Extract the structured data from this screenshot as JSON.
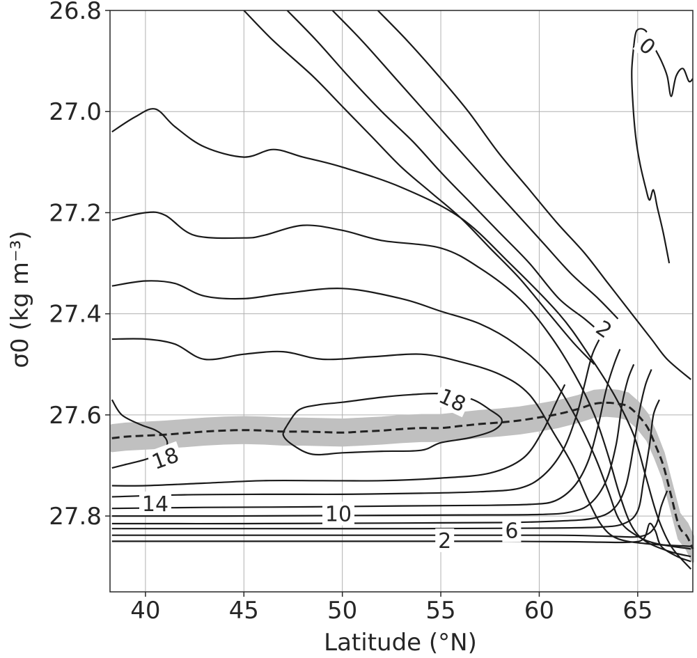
{
  "chart_data": {
    "type": "contour",
    "xlabel": "Latitude (°N)",
    "ylabel": "σ0 (kg m⁻³)",
    "xlim": [
      38.2,
      67.8
    ],
    "ylim": [
      26.8,
      27.95
    ],
    "y_inverted": true,
    "grid": true,
    "xticks": [
      40,
      45,
      50,
      55,
      60,
      65
    ],
    "xtick_labels": [
      "40",
      "45",
      "50",
      "55",
      "60",
      "65"
    ],
    "yticks": [
      26.8,
      27.0,
      27.2,
      27.4,
      27.6,
      27.8
    ],
    "ytick_labels": [
      "26.8",
      "27.0",
      "27.2",
      "27.4",
      "27.6",
      "27.8"
    ],
    "contour_labels": [
      {
        "text": "0",
        "lat": 65.5,
        "sigma": 26.87,
        "angle": 40
      },
      {
        "text": "2",
        "lat": 63.3,
        "sigma": 27.43,
        "angle": 35
      },
      {
        "text": "18",
        "lat": 55.6,
        "sigma": 27.57,
        "angle": 25
      },
      {
        "text": "18",
        "lat": 41.0,
        "sigma": 27.685,
        "angle": -20
      },
      {
        "text": "14",
        "lat": 40.5,
        "sigma": 27.775,
        "angle": 0
      },
      {
        "text": "10",
        "lat": 49.8,
        "sigma": 27.795,
        "angle": 0
      },
      {
        "text": "6",
        "lat": 58.6,
        "sigma": 27.828,
        "angle": 0
      },
      {
        "text": "2",
        "lat": 55.2,
        "sigma": 27.848,
        "angle": 0
      }
    ],
    "contours": [
      [
        [
          38.3,
          27.04
        ],
        [
          39.5,
          27.01
        ],
        [
          40.5,
          26.995
        ],
        [
          41.5,
          27.03
        ],
        [
          43,
          27.07
        ],
        [
          45,
          27.09
        ],
        [
          46.5,
          27.075
        ],
        [
          48,
          27.09
        ],
        [
          50,
          27.11
        ],
        [
          53,
          27.15
        ],
        [
          56,
          27.21
        ],
        [
          58.5,
          27.3
        ],
        [
          61,
          27.4
        ],
        [
          62.5,
          27.48
        ],
        [
          63.8,
          27.56
        ],
        [
          64.8,
          27.64
        ],
        [
          65.4,
          27.72
        ],
        [
          66,
          27.8
        ],
        [
          66.7,
          27.86
        ],
        [
          67.7,
          27.905
        ]
      ],
      [
        [
          38.3,
          27.215
        ],
        [
          40,
          27.2
        ],
        [
          41,
          27.205
        ],
        [
          42.5,
          27.245
        ],
        [
          45,
          27.25
        ],
        [
          46,
          27.245
        ],
        [
          48,
          27.225
        ],
        [
          50,
          27.235
        ],
        [
          52,
          27.255
        ],
        [
          55,
          27.27
        ],
        [
          57,
          27.31
        ],
        [
          59,
          27.37
        ],
        [
          60.5,
          27.44
        ],
        [
          61.8,
          27.52
        ],
        [
          62.8,
          27.6
        ],
        [
          63.5,
          27.68
        ],
        [
          64.1,
          27.76
        ],
        [
          64.7,
          27.82
        ],
        [
          65.4,
          27.85
        ],
        [
          66.6,
          27.87
        ],
        [
          67.7,
          27.88
        ]
      ],
      [
        [
          38.3,
          27.345
        ],
        [
          40,
          27.335
        ],
        [
          41.5,
          27.34
        ],
        [
          43,
          27.365
        ],
        [
          45,
          27.37
        ],
        [
          47,
          27.36
        ],
        [
          50,
          27.35
        ],
        [
          53,
          27.37
        ],
        [
          55,
          27.395
        ],
        [
          57,
          27.42
        ],
        [
          58.8,
          27.46
        ],
        [
          60.5,
          27.52
        ],
        [
          61.8,
          27.6
        ],
        [
          62.8,
          27.68
        ],
        [
          63.5,
          27.75
        ],
        [
          64.1,
          27.81
        ],
        [
          65,
          27.84
        ],
        [
          66,
          27.855
        ],
        [
          67.7,
          27.865
        ]
      ],
      [
        [
          38.3,
          27.45
        ],
        [
          40,
          27.45
        ],
        [
          41.5,
          27.46
        ],
        [
          43,
          27.49
        ],
        [
          45,
          27.48
        ],
        [
          47,
          27.475
        ],
        [
          49,
          27.49
        ],
        [
          51.5,
          27.485
        ],
        [
          54,
          27.48
        ],
        [
          56,
          27.495
        ],
        [
          58,
          27.52
        ],
        [
          59.5,
          27.56
        ],
        [
          60.8,
          27.64
        ],
        [
          61.7,
          27.7
        ],
        [
          62.5,
          27.77
        ],
        [
          63.2,
          27.82
        ],
        [
          64,
          27.845
        ],
        [
          65.5,
          27.855
        ],
        [
          67.7,
          27.86
        ]
      ],
      [
        [
          38.3,
          27.74
        ],
        [
          40,
          27.74
        ],
        [
          43,
          27.735
        ],
        [
          46,
          27.73
        ],
        [
          49,
          27.73
        ],
        [
          52,
          27.73
        ],
        [
          55,
          27.725
        ],
        [
          57.5,
          27.715
        ],
        [
          59.2,
          27.685
        ],
        [
          60.2,
          27.63
        ],
        [
          60.8,
          27.58
        ],
        [
          61.3,
          27.54
        ]
      ],
      [
        [
          38.3,
          27.762
        ],
        [
          42,
          27.758
        ],
        [
          46,
          27.757
        ],
        [
          50,
          27.757
        ],
        [
          54,
          27.755
        ],
        [
          57,
          27.752
        ],
        [
          59,
          27.745
        ],
        [
          60.2,
          27.72
        ],
        [
          61.2,
          27.67
        ],
        [
          61.9,
          27.6
        ],
        [
          62.3,
          27.54
        ],
        [
          62.7,
          27.48
        ],
        [
          63.2,
          27.44
        ]
      ],
      [
        [
          38.3,
          27.785
        ],
        [
          43,
          27.783
        ],
        [
          48,
          27.782
        ],
        [
          53,
          27.78
        ],
        [
          57,
          27.779
        ],
        [
          59.5,
          27.777
        ],
        [
          60.8,
          27.77
        ],
        [
          61.8,
          27.74
        ],
        [
          62.5,
          27.69
        ],
        [
          63,
          27.62
        ],
        [
          63.4,
          27.55
        ],
        [
          63.8,
          27.5
        ],
        [
          64.1,
          27.47
        ]
      ],
      [
        [
          38.3,
          27.8
        ],
        [
          44,
          27.8
        ],
        [
          50,
          27.799
        ],
        [
          56,
          27.798
        ],
        [
          60,
          27.797
        ],
        [
          61.6,
          27.792
        ],
        [
          62.6,
          27.775
        ],
        [
          63.4,
          27.73
        ],
        [
          63.9,
          27.66
        ],
        [
          64.2,
          27.58
        ],
        [
          64.5,
          27.53
        ],
        [
          64.8,
          27.5
        ]
      ],
      [
        [
          38.3,
          27.815
        ],
        [
          45,
          27.815
        ],
        [
          52,
          27.814
        ],
        [
          58,
          27.813
        ],
        [
          61,
          27.81
        ],
        [
          62.8,
          27.804
        ],
        [
          63.8,
          27.785
        ],
        [
          64.4,
          27.74
        ],
        [
          64.8,
          27.66
        ],
        [
          65.1,
          27.59
        ],
        [
          65.4,
          27.54
        ],
        [
          65.7,
          27.51
        ]
      ],
      [
        [
          38.3,
          27.825
        ],
        [
          46,
          27.825
        ],
        [
          54,
          27.825
        ],
        [
          60,
          27.824
        ],
        [
          63,
          27.822
        ],
        [
          64.3,
          27.815
        ],
        [
          65,
          27.79
        ],
        [
          65.3,
          27.73
        ],
        [
          65.6,
          27.66
        ],
        [
          65.8,
          27.6
        ],
        [
          66.1,
          27.57
        ]
      ],
      [
        [
          38.3,
          27.838
        ],
        [
          47,
          27.838
        ],
        [
          56,
          27.838
        ],
        [
          61,
          27.838
        ],
        [
          63.5,
          27.84
        ],
        [
          65.2,
          27.84
        ],
        [
          65.9,
          27.82
        ],
        [
          66.2,
          27.78
        ],
        [
          66.5,
          27.75
        ]
      ],
      [
        [
          38.3,
          27.85
        ],
        [
          50,
          27.85
        ],
        [
          58,
          27.85
        ],
        [
          62,
          27.851
        ],
        [
          64.5,
          27.852
        ],
        [
          65.3,
          27.845
        ],
        [
          65.6,
          27.815
        ],
        [
          65.9,
          27.83
        ],
        [
          66.2,
          27.86
        ],
        [
          67,
          27.88
        ],
        [
          67.7,
          27.89
        ]
      ],
      [
        [
          38.3,
          27.57
        ],
        [
          38.8,
          27.6
        ],
        [
          39.8,
          27.62
        ],
        [
          40.5,
          27.63
        ],
        [
          41,
          27.645
        ],
        [
          41.1,
          27.66
        ],
        [
          40.8,
          27.675
        ],
        [
          40,
          27.688
        ],
        [
          39,
          27.698
        ],
        [
          38.3,
          27.705
        ]
      ],
      [
        [
          47.2,
          27.62
        ],
        [
          47.8,
          27.59
        ],
        [
          48.8,
          27.58
        ],
        [
          50,
          27.575
        ],
        [
          52,
          27.565
        ],
        [
          53.5,
          27.56
        ],
        [
          55,
          27.558
        ],
        [
          56.5,
          27.568
        ],
        [
          57.5,
          27.59
        ],
        [
          58.1,
          27.61
        ],
        [
          57.7,
          27.63
        ],
        [
          56.5,
          27.645
        ],
        [
          55,
          27.655
        ],
        [
          54,
          27.67
        ],
        [
          52,
          27.672
        ],
        [
          50,
          27.675
        ],
        [
          48.5,
          27.678
        ],
        [
          47.5,
          27.66
        ],
        [
          47,
          27.64
        ],
        [
          47.2,
          27.62
        ]
      ],
      [
        [
          45,
          26.8
        ],
        [
          46.5,
          26.86
        ],
        [
          48.5,
          26.93
        ],
        [
          50,
          26.99
        ],
        [
          51.5,
          27.05
        ],
        [
          53,
          27.11
        ],
        [
          54.5,
          27.16
        ],
        [
          56,
          27.21
        ],
        [
          57.5,
          27.27
        ],
        [
          59,
          27.33
        ],
        [
          60.5,
          27.4
        ],
        [
          61.8,
          27.46
        ],
        [
          62.8,
          27.5
        ]
      ],
      [
        [
          47.2,
          26.8
        ],
        [
          48.7,
          26.86
        ],
        [
          50.3,
          26.93
        ],
        [
          52,
          27.0
        ],
        [
          53.6,
          27.06
        ],
        [
          55,
          27.12
        ],
        [
          56.5,
          27.18
        ],
        [
          58,
          27.24
        ],
        [
          59.5,
          27.3
        ],
        [
          61,
          27.37
        ],
        [
          62.3,
          27.41
        ],
        [
          63.2,
          27.44
        ]
      ],
      [
        [
          49.5,
          26.8
        ],
        [
          51,
          26.86
        ],
        [
          52.6,
          26.93
        ],
        [
          54.2,
          27.0
        ],
        [
          55.8,
          27.07
        ],
        [
          57.4,
          27.14
        ],
        [
          58.8,
          27.2
        ],
        [
          60.2,
          27.26
        ],
        [
          61.6,
          27.32
        ],
        [
          63,
          27.37
        ],
        [
          64,
          27.41
        ]
      ],
      [
        [
          51.8,
          26.8
        ],
        [
          53.3,
          26.86
        ],
        [
          54.9,
          26.93
        ],
        [
          56.4,
          27.0
        ],
        [
          57.9,
          27.08
        ],
        [
          59.4,
          27.15
        ],
        [
          60.9,
          27.22
        ],
        [
          62.3,
          27.28
        ],
        [
          63.5,
          27.34
        ],
        [
          64.7,
          27.4
        ],
        [
          65.7,
          27.45
        ],
        [
          66.5,
          27.49
        ],
        [
          67.7,
          27.53
        ]
      ],
      [
        [
          64.8,
          26.87
        ],
        [
          64.95,
          26.84
        ],
        [
          65.4,
          26.84
        ],
        [
          65.8,
          26.87
        ],
        [
          66.2,
          26.9
        ],
        [
          66.5,
          26.93
        ],
        [
          66.7,
          26.97
        ],
        [
          66.95,
          26.93
        ],
        [
          67.3,
          26.915
        ],
        [
          67.6,
          26.94
        ],
        [
          67.8,
          26.935
        ]
      ],
      [
        [
          64.8,
          26.87
        ],
        [
          64.7,
          26.92
        ],
        [
          64.75,
          26.98
        ],
        [
          64.9,
          27.05
        ],
        [
          65.1,
          27.1
        ],
        [
          65.4,
          27.15
        ],
        [
          65.6,
          27.175
        ],
        [
          65.8,
          27.155
        ],
        [
          66,
          27.19
        ],
        [
          66.3,
          27.24
        ],
        [
          66.6,
          27.3
        ]
      ]
    ],
    "series": [
      {
        "name": "",
        "style": "dashed",
        "x": [
          38.3,
          39,
          40,
          41,
          42,
          43,
          44,
          45,
          46,
          47,
          48,
          49,
          50,
          51,
          52,
          53,
          54,
          55,
          56,
          57,
          58,
          59,
          60,
          61,
          62,
          62.8,
          63.4,
          64,
          64.5,
          65,
          65.5,
          65.9,
          66.3,
          66.7,
          67.1,
          67.5,
          67.8
        ],
        "y": [
          27.646,
          27.643,
          27.641,
          27.639,
          27.636,
          27.633,
          27.631,
          27.63,
          27.631,
          27.633,
          27.633,
          27.634,
          27.635,
          27.633,
          27.631,
          27.628,
          27.626,
          27.626,
          27.622,
          27.618,
          27.615,
          27.611,
          27.605,
          27.598,
          27.588,
          27.578,
          27.576,
          27.578,
          27.583,
          27.6,
          27.625,
          27.66,
          27.7,
          27.76,
          27.82,
          27.84,
          27.865
        ]
      }
    ],
    "band": {
      "color": "#c0c0c0",
      "lower_offset": 0.025,
      "upper_offset": 0.025
    },
    "line_color": "#1a1a1a",
    "grid_color": "#b0b0b0"
  }
}
